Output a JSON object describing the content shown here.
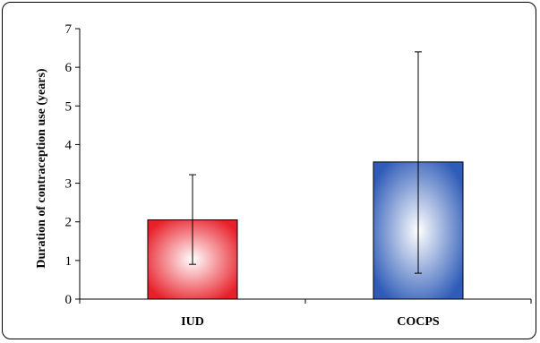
{
  "chart_data": {
    "type": "bar",
    "title": "",
    "xlabel": "",
    "ylabel": "Duration of contraception use (years)",
    "categories": [
      "IUD",
      "COCPS"
    ],
    "values": [
      2.05,
      3.55
    ],
    "error_bars": {
      "upper": [
        3.22,
        6.4
      ],
      "lower": [
        0.9,
        0.67
      ]
    },
    "ylim": [
      0,
      7
    ],
    "yticks": [
      "0",
      "1",
      "2",
      "3",
      "4",
      "5",
      "6",
      "7"
    ],
    "grid": false,
    "legend": "none",
    "bar_colors": [
      {
        "edge": "#e8202a",
        "center": "#ffffff"
      },
      {
        "edge": "#2f5cb8",
        "center": "#ffffff"
      }
    ]
  }
}
